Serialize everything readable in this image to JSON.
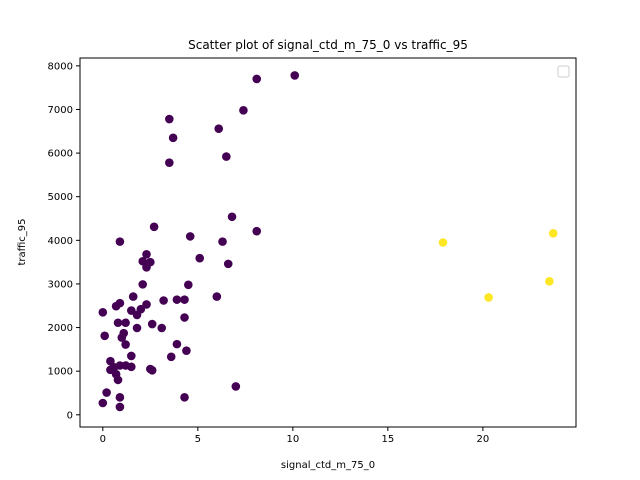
{
  "chart_data": {
    "type": "scatter",
    "title": "Scatter plot of signal_ctd_m_75_0 vs traffic_95",
    "xlabel": "signal_ctd_m_75_0",
    "ylabel": "traffic_95",
    "xlim": [
      -1.2,
      24.9
    ],
    "ylim": [
      -280,
      8180
    ],
    "xticks": [
      0,
      5,
      10,
      15,
      20
    ],
    "yticks": [
      0,
      1000,
      2000,
      3000,
      4000,
      5000,
      6000,
      7000,
      8000
    ],
    "legend": "top-right",
    "legend_entries": [],
    "grid": false,
    "colors": {
      "cluster_a": "#440154",
      "cluster_b": "#fde725"
    },
    "series": [
      {
        "color": "#440154",
        "points": [
          [
            8.1,
            7700
          ],
          [
            10.1,
            7780
          ],
          [
            7.4,
            6980
          ],
          [
            3.5,
            6780
          ],
          [
            3.7,
            6350
          ],
          [
            6.1,
            6560
          ],
          [
            3.5,
            5780
          ],
          [
            6.5,
            5920
          ],
          [
            6.8,
            4540
          ],
          [
            8.1,
            4210
          ],
          [
            2.7,
            4310
          ],
          [
            4.6,
            4090
          ],
          [
            6.3,
            3970
          ],
          [
            0.9,
            3970
          ],
          [
            2.3,
            3680
          ],
          [
            2.1,
            3520
          ],
          [
            2.5,
            3500
          ],
          [
            2.3,
            3380
          ],
          [
            5.1,
            3590
          ],
          [
            6.6,
            3460
          ],
          [
            2.1,
            2990
          ],
          [
            4.5,
            2980
          ],
          [
            1.6,
            2710
          ],
          [
            3.2,
            2620
          ],
          [
            3.9,
            2640
          ],
          [
            4.3,
            2640
          ],
          [
            6.0,
            2710
          ],
          [
            0.9,
            2560
          ],
          [
            0.7,
            2490
          ],
          [
            2.3,
            2530
          ],
          [
            1.5,
            2390
          ],
          [
            2.0,
            2420
          ],
          [
            1.8,
            2290
          ],
          [
            0.0,
            2350
          ],
          [
            4.3,
            2230
          ],
          [
            0.8,
            2110
          ],
          [
            1.2,
            2110
          ],
          [
            2.6,
            2080
          ],
          [
            3.1,
            1990
          ],
          [
            1.8,
            1990
          ],
          [
            1.1,
            1870
          ],
          [
            1.0,
            1770
          ],
          [
            0.1,
            1810
          ],
          [
            1.2,
            1610
          ],
          [
            3.9,
            1620
          ],
          [
            4.4,
            1470
          ],
          [
            1.5,
            1350
          ],
          [
            3.6,
            1330
          ],
          [
            0.4,
            1230
          ],
          [
            0.9,
            1130
          ],
          [
            1.2,
            1130
          ],
          [
            1.5,
            1100
          ],
          [
            0.6,
            1090
          ],
          [
            0.4,
            1030
          ],
          [
            2.5,
            1050
          ],
          [
            2.6,
            1020
          ],
          [
            0.7,
            930
          ],
          [
            0.8,
            800
          ],
          [
            7.0,
            650
          ],
          [
            0.2,
            510
          ],
          [
            0.9,
            400
          ],
          [
            4.3,
            400
          ],
          [
            0.0,
            270
          ],
          [
            0.9,
            180
          ]
        ]
      },
      {
        "color": "#fde725",
        "points": [
          [
            17.9,
            3950
          ],
          [
            23.7,
            4160
          ],
          [
            20.3,
            2690
          ],
          [
            23.5,
            3060
          ]
        ]
      }
    ]
  }
}
